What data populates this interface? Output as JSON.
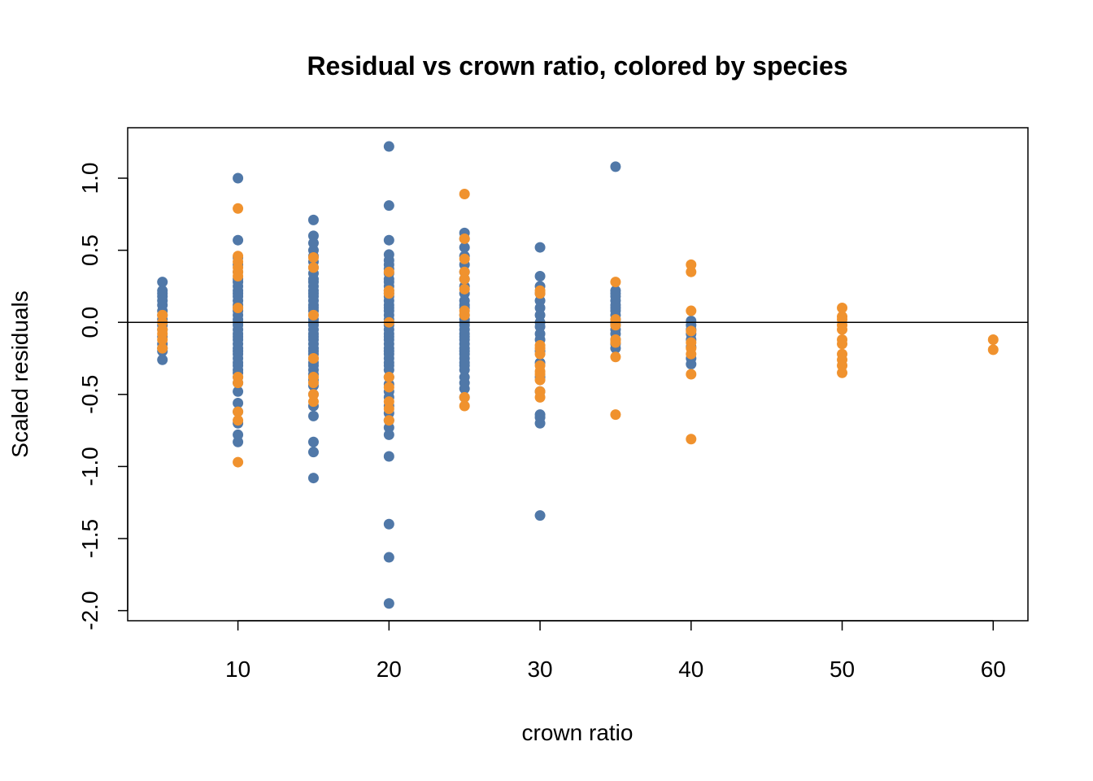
{
  "chart_data": {
    "type": "scatter",
    "title": "Residual vs crown ratio, colored by species",
    "xlabel": "crown ratio",
    "ylabel": "Scaled residuals",
    "xlim": [
      2.7,
      62.3
    ],
    "ylim": [
      -2.07,
      1.35
    ],
    "x_ticks": [
      10,
      20,
      30,
      40,
      50,
      60
    ],
    "y_ticks": [
      -2.0,
      -1.5,
      -1.0,
      -0.5,
      0.0,
      0.5,
      1.0
    ],
    "x_tick_labels": [
      "10",
      "20",
      "30",
      "40",
      "50",
      "60"
    ],
    "y_tick_labels": [
      "-2.0",
      "-1.5",
      "-1.0",
      "-0.5",
      "0.0",
      "0.5",
      "1.0"
    ],
    "reference_line_y": 0,
    "grid": false,
    "legend": "none",
    "colors": {
      "series_a": "#5078a8",
      "series_b": "#f0922e",
      "axis": "#000000"
    },
    "series": [
      {
        "color": "#5078a8",
        "points": [
          {
            "x": 5,
            "values": [
              0.28,
              0.22,
              0.2,
              0.18,
              0.15,
              0.12,
              0.08,
              0.05,
              0.02,
              -0.02,
              -0.05,
              -0.1,
              -0.15,
              -0.18,
              -0.2,
              -0.26
            ]
          },
          {
            "x": 10,
            "values": [
              1.0,
              0.57,
              0.45,
              0.4,
              0.35,
              0.3,
              0.28,
              0.25,
              0.22,
              0.2,
              0.18,
              0.15,
              0.12,
              0.1,
              0.08,
              0.05,
              0.02,
              0.0,
              -0.02,
              -0.05,
              -0.08,
              -0.1,
              -0.12,
              -0.15,
              -0.18,
              -0.2,
              -0.22,
              -0.25,
              -0.28,
              -0.3,
              -0.33,
              -0.35,
              -0.38,
              -0.42,
              -0.48,
              -0.56,
              -0.62,
              -0.7,
              -0.78,
              -0.83
            ]
          },
          {
            "x": 15,
            "values": [
              0.71,
              0.6,
              0.55,
              0.5,
              0.46,
              0.42,
              0.38,
              0.34,
              0.3,
              0.28,
              0.25,
              0.22,
              0.2,
              0.18,
              0.15,
              0.12,
              0.1,
              0.08,
              0.05,
              0.02,
              0.0,
              -0.02,
              -0.05,
              -0.08,
              -0.1,
              -0.12,
              -0.15,
              -0.18,
              -0.2,
              -0.22,
              -0.25,
              -0.28,
              -0.3,
              -0.33,
              -0.36,
              -0.4,
              -0.44,
              -0.5,
              -0.58,
              -0.65,
              -0.83,
              -0.9,
              -1.08
            ]
          },
          {
            "x": 20,
            "values": [
              1.22,
              0.81,
              0.57,
              0.47,
              0.43,
              0.4,
              0.37,
              0.34,
              0.3,
              0.28,
              0.25,
              0.22,
              0.2,
              0.18,
              0.15,
              0.12,
              0.1,
              0.08,
              0.05,
              0.02,
              0.0,
              -0.02,
              -0.05,
              -0.08,
              -0.1,
              -0.12,
              -0.15,
              -0.18,
              -0.2,
              -0.22,
              -0.25,
              -0.28,
              -0.3,
              -0.33,
              -0.38,
              -0.43,
              -0.48,
              -0.52,
              -0.58,
              -0.63,
              -0.68,
              -0.73,
              -0.78,
              -0.93,
              -1.4,
              -1.63,
              -1.95
            ]
          },
          {
            "x": 25,
            "values": [
              0.62,
              0.58,
              0.52,
              0.46,
              0.4,
              0.35,
              0.3,
              0.25,
              0.2,
              0.15,
              0.12,
              0.1,
              0.05,
              0.02,
              0.0,
              -0.02,
              -0.05,
              -0.08,
              -0.1,
              -0.12,
              -0.15,
              -0.18,
              -0.2,
              -0.22,
              -0.25,
              -0.28,
              -0.3,
              -0.33,
              -0.38,
              -0.42,
              -0.46,
              -0.52
            ]
          },
          {
            "x": 30,
            "values": [
              0.52,
              0.32,
              0.25,
              0.2,
              0.15,
              0.1,
              0.05,
              0.0,
              -0.03,
              -0.08,
              -0.12,
              -0.2,
              -0.28,
              -0.38,
              -0.48,
              -0.64,
              -0.66,
              -0.7,
              -1.34
            ]
          },
          {
            "x": 35,
            "values": [
              1.08,
              0.22,
              0.2,
              0.18,
              0.15,
              0.12,
              0.1,
              0.08,
              0.05,
              0.02,
              0.0,
              -0.02,
              -0.05,
              -0.08,
              -0.12,
              -0.15,
              -0.18
            ]
          },
          {
            "x": 40,
            "values": [
              0.01,
              -0.02,
              -0.05,
              -0.08,
              -0.12,
              -0.17,
              -0.25,
              -0.29
            ]
          }
        ]
      },
      {
        "color": "#f0922e",
        "points": [
          {
            "x": 5,
            "values": [
              0.05,
              0.0,
              -0.05,
              -0.08,
              -0.12,
              -0.18
            ]
          },
          {
            "x": 10,
            "values": [
              0.79,
              0.46,
              0.42,
              0.38,
              0.35,
              0.32,
              0.1,
              -0.38,
              -0.42,
              -0.62,
              -0.68,
              -0.97
            ]
          },
          {
            "x": 15,
            "values": [
              0.45,
              0.38,
              0.05,
              -0.25,
              -0.38,
              -0.42,
              -0.5,
              -0.55
            ]
          },
          {
            "x": 20,
            "values": [
              0.35,
              0.22,
              0.2,
              0.0,
              -0.38,
              -0.45,
              -0.55,
              -0.6,
              -0.68
            ]
          },
          {
            "x": 25,
            "values": [
              0.89,
              0.58,
              0.44,
              0.35,
              0.3,
              0.23,
              0.08,
              0.05,
              -0.52,
              -0.58
            ]
          },
          {
            "x": 30,
            "values": [
              0.22,
              0.2,
              -0.16,
              -0.18,
              -0.22,
              -0.3,
              -0.34,
              -0.36,
              -0.4,
              -0.48,
              -0.52
            ]
          },
          {
            "x": 35,
            "values": [
              0.28,
              0.02,
              -0.02,
              -0.12,
              -0.14,
              -0.24,
              -0.64
            ]
          },
          {
            "x": 40,
            "values": [
              0.4,
              0.35,
              0.08,
              -0.06,
              -0.14,
              -0.18,
              -0.22,
              -0.36,
              -0.81
            ]
          },
          {
            "x": 50,
            "values": [
              0.1,
              0.04,
              0.02,
              -0.02,
              -0.05,
              -0.12,
              -0.15,
              -0.22,
              -0.26,
              -0.3,
              -0.35
            ]
          },
          {
            "x": 60,
            "values": [
              -0.12,
              -0.19
            ]
          }
        ]
      }
    ]
  }
}
